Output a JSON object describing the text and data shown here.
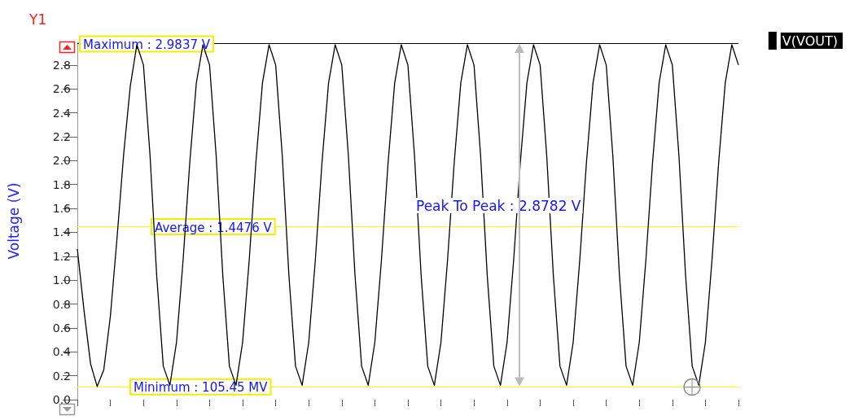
{
  "chart_data": {
    "type": "line",
    "ylabel": "Voltage (V)",
    "annotations": [
      "Y1",
      "Peak To Peak : 2.8782 V"
    ],
    "categories": [
      null,
      null,
      null,
      null,
      null,
      null,
      null,
      null,
      null,
      null,
      null,
      null,
      null,
      null,
      null,
      null,
      null,
      null,
      null,
      null,
      null,
      null,
      null,
      null,
      null,
      null,
      null,
      null,
      null,
      null,
      null,
      null,
      null,
      null,
      null,
      null,
      null,
      null,
      null,
      null,
      null,
      null,
      null,
      null,
      null,
      null,
      null,
      null,
      null,
      null,
      null,
      null,
      null,
      null,
      null,
      null,
      null,
      null,
      null,
      null,
      null,
      null,
      null,
      null,
      null,
      null,
      null,
      null,
      null,
      null,
      null,
      null,
      null,
      null,
      null,
      null,
      null,
      null,
      null,
      null,
      null,
      null,
      null,
      null,
      null,
      null,
      null,
      null,
      null,
      null,
      null,
      null,
      null,
      null,
      null,
      null,
      null,
      null,
      null,
      null,
      null
    ],
    "series": [
      {
        "name": "V(VOUT)",
        "color": "#000000",
        "values": [
          1.26,
          0.75,
          0.3,
          0.11,
          0.25,
          0.7,
          1.35,
          2.05,
          2.62,
          2.97,
          2.8,
          2.04,
          1.04,
          0.28,
          0.12,
          0.48,
          1.17,
          1.98,
          2.65,
          2.97,
          2.8,
          2.04,
          1.04,
          0.28,
          0.12,
          0.48,
          1.17,
          1.98,
          2.65,
          2.97,
          2.8,
          2.04,
          1.04,
          0.28,
          0.12,
          0.48,
          1.17,
          1.98,
          2.65,
          2.97,
          2.8,
          2.04,
          1.04,
          0.28,
          0.12,
          0.48,
          1.17,
          1.98,
          2.65,
          2.97,
          2.8,
          2.04,
          1.04,
          0.28,
          0.12,
          0.48,
          1.17,
          1.98,
          2.65,
          2.97,
          2.8,
          2.04,
          1.04,
          0.28,
          0.12,
          0.48,
          1.17,
          1.98,
          2.65,
          2.97,
          2.8,
          2.04,
          1.04,
          0.28,
          0.12,
          0.48,
          1.17,
          1.98,
          2.65,
          2.97,
          2.8,
          2.04,
          1.04,
          0.28,
          0.12,
          0.48,
          1.17,
          1.98,
          2.65,
          2.97,
          2.8,
          2.04,
          1.04,
          0.28,
          0.12,
          0.48,
          1.17,
          1.98,
          2.65,
          2.97,
          2.8
        ]
      }
    ],
    "ylim": [
      0,
      2.99
    ],
    "yticks": [
      {
        "value": 0,
        "label": "0.0"
      },
      0.2,
      0.4,
      0.6,
      0.8,
      {
        "value": 1,
        "label": "1.0"
      },
      1.2,
      1.4,
      1.6,
      1.8,
      {
        "value": 2,
        "label": "2.0"
      },
      2.2,
      2.4,
      2.6,
      2.8
    ],
    "ref_lines": [
      {
        "axis": "y",
        "value": 2.9837,
        "label": "Maximum : 2.9837 V",
        "color": "#000000"
      },
      {
        "axis": "y",
        "value": 1.4476,
        "label": "Average : 1.4476 V",
        "color": "#ffff00"
      },
      {
        "axis": "y",
        "value": 0.10545,
        "label": "Minimum : 105.45 MV",
        "color": "#ffff00"
      }
    ],
    "tick_labels": "y",
    "legend": "top right",
    "marker": "none",
    "grid": false
  }
}
